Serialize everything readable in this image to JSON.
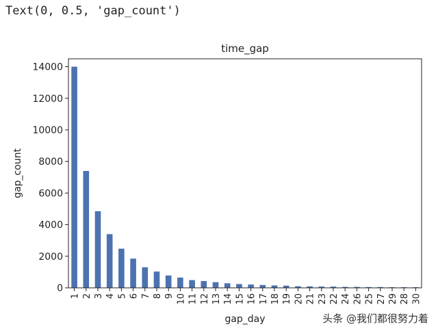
{
  "output_text": "Text(0, 0.5, 'gap_count')",
  "watermark": "头条 @我们都很努力着",
  "chart_data": {
    "type": "bar",
    "title": "time_gap",
    "xlabel": "gap_day",
    "ylabel": "gap_count",
    "ylim": [
      0,
      14500
    ],
    "yticks": [
      0,
      2000,
      4000,
      6000,
      8000,
      10000,
      12000,
      14000
    ],
    "grid": false,
    "bar_color": "#4c72b0",
    "categories": [
      "1",
      "2",
      "3",
      "4",
      "5",
      "6",
      "7",
      "8",
      "9",
      "10",
      "11",
      "12",
      "13",
      "14",
      "15",
      "16",
      "17",
      "18",
      "19",
      "20",
      "21",
      "23",
      "22",
      "24",
      "26",
      "25",
      "27",
      "29",
      "28",
      "30"
    ],
    "values": [
      14000,
      7400,
      4850,
      3400,
      2480,
      1850,
      1300,
      1030,
      780,
      650,
      490,
      430,
      360,
      290,
      240,
      210,
      180,
      150,
      140,
      100,
      90,
      80,
      80,
      60,
      60,
      50,
      50,
      40,
      40,
      40
    ]
  }
}
